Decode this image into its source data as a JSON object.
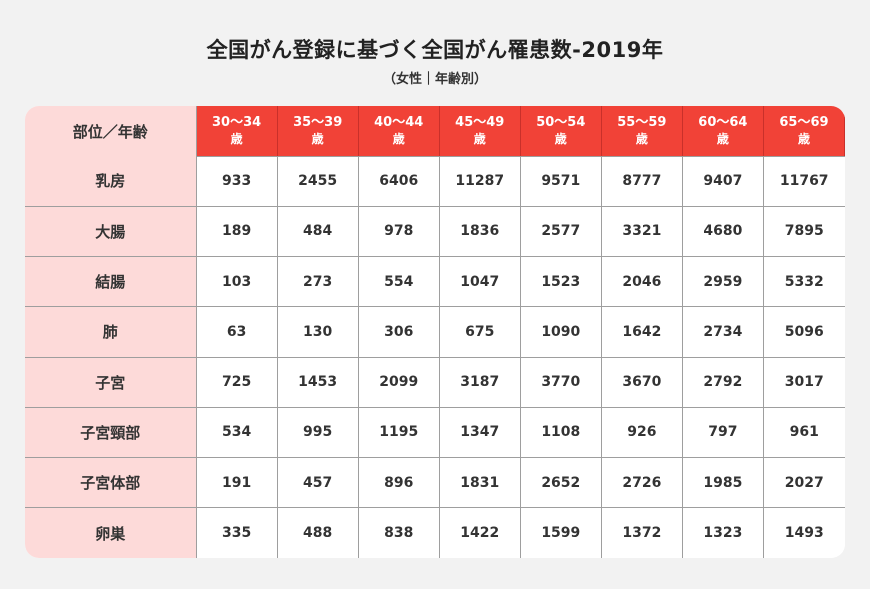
{
  "header": {
    "title": "全国がん登録に基づく全国がん罹患数-2019年",
    "subtitle": "（女性｜年齢別）"
  },
  "colors": {
    "header_red": "#f14237",
    "row_header_pink": "#fddad9",
    "grid": "#9e9e9e",
    "background": "#f2f2f2"
  },
  "table": {
    "corner_label": "部位／年齢",
    "columns": [
      {
        "range": "30〜34",
        "unit": "歳"
      },
      {
        "range": "35〜39",
        "unit": "歳"
      },
      {
        "range": "40〜44",
        "unit": "歳"
      },
      {
        "range": "45〜49",
        "unit": "歳"
      },
      {
        "range": "50〜54",
        "unit": "歳"
      },
      {
        "range": "55〜59",
        "unit": "歳"
      },
      {
        "range": "60〜64",
        "unit": "歳"
      },
      {
        "range": "65〜69",
        "unit": "歳"
      }
    ],
    "rows": [
      {
        "site": "乳房",
        "values": [
          "933",
          "2455",
          "6406",
          "11287",
          "9571",
          "8777",
          "9407",
          "11767"
        ]
      },
      {
        "site": "大腸",
        "values": [
          "189",
          "484",
          "978",
          "1836",
          "2577",
          "3321",
          "4680",
          "7895"
        ]
      },
      {
        "site": "結腸",
        "values": [
          "103",
          "273",
          "554",
          "1047",
          "1523",
          "2046",
          "2959",
          "5332"
        ]
      },
      {
        "site": "肺",
        "values": [
          "63",
          "130",
          "306",
          "675",
          "1090",
          "1642",
          "2734",
          "5096"
        ]
      },
      {
        "site": "子宮",
        "values": [
          "725",
          "1453",
          "2099",
          "3187",
          "3770",
          "3670",
          "2792",
          "3017"
        ]
      },
      {
        "site": "子宮頸部",
        "values": [
          "534",
          "995",
          "1195",
          "1347",
          "1108",
          "926",
          "797",
          "961"
        ]
      },
      {
        "site": "子宮体部",
        "values": [
          "191",
          "457",
          "896",
          "1831",
          "2652",
          "2726",
          "1985",
          "2027"
        ]
      },
      {
        "site": "卵巣",
        "values": [
          "335",
          "488",
          "838",
          "1422",
          "1599",
          "1372",
          "1323",
          "1493"
        ]
      }
    ]
  },
  "chart_data": {
    "type": "table",
    "title": "全国がん登録に基づく全国がん罹患数-2019年",
    "subtitle": "（女性｜年齢別）",
    "xlabel": "年齢",
    "ylabel": "部位",
    "categories": [
      "30〜34歳",
      "35〜39歳",
      "40〜44歳",
      "45〜49歳",
      "50〜54歳",
      "55〜59歳",
      "60〜64歳",
      "65〜69歳"
    ],
    "series": [
      {
        "name": "乳房",
        "values": [
          933,
          2455,
          6406,
          11287,
          9571,
          8777,
          9407,
          11767
        ]
      },
      {
        "name": "大腸",
        "values": [
          189,
          484,
          978,
          1836,
          2577,
          3321,
          4680,
          7895
        ]
      },
      {
        "name": "結腸",
        "values": [
          103,
          273,
          554,
          1047,
          1523,
          2046,
          2959,
          5332
        ]
      },
      {
        "name": "肺",
        "values": [
          63,
          130,
          306,
          675,
          1090,
          1642,
          2734,
          5096
        ]
      },
      {
        "name": "子宮",
        "values": [
          725,
          1453,
          2099,
          3187,
          3770,
          3670,
          2792,
          3017
        ]
      },
      {
        "name": "子宮頸部",
        "values": [
          534,
          995,
          1195,
          1347,
          1108,
          926,
          797,
          961
        ]
      },
      {
        "name": "子宮体部",
        "values": [
          191,
          457,
          896,
          1831,
          2652,
          2726,
          1985,
          2027
        ]
      },
      {
        "name": "卵巣",
        "values": [
          335,
          488,
          838,
          1422,
          1599,
          1372,
          1323,
          1493
        ]
      }
    ]
  }
}
